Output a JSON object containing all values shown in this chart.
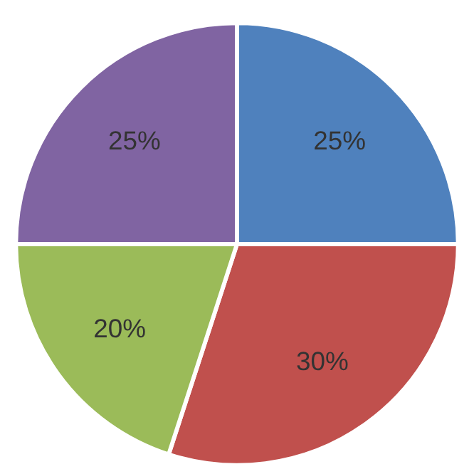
{
  "chart_data": {
    "type": "pie",
    "categories": [
      null,
      null,
      null,
      null
    ],
    "values": [
      25,
      30,
      20,
      25
    ],
    "colors": [
      "#4f81bd",
      "#c0504d",
      "#9bbb59",
      "#8064a2"
    ],
    "value_labels": [
      "25%",
      "30%",
      "20%",
      "25%"
    ],
    "legend": false
  }
}
